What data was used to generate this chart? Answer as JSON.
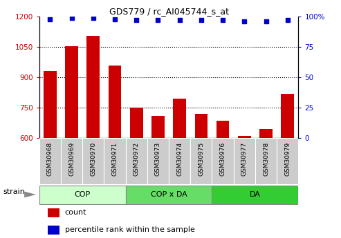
{
  "title": "GDS779 / rc_AI045744_s_at",
  "categories": [
    "GSM30968",
    "GSM30969",
    "GSM30970",
    "GSM30971",
    "GSM30972",
    "GSM30973",
    "GSM30974",
    "GSM30975",
    "GSM30976",
    "GSM30977",
    "GSM30978",
    "GSM30979"
  ],
  "bar_values": [
    930,
    1055,
    1105,
    960,
    752,
    710,
    795,
    720,
    685,
    610,
    645,
    820
  ],
  "percentile_values": [
    98,
    99,
    99,
    98,
    97,
    97,
    97,
    97,
    97,
    96,
    96,
    97
  ],
  "bar_color": "#cc0000",
  "dot_color": "#0000cc",
  "ylim_left": [
    600,
    1200
  ],
  "ylim_right": [
    0,
    100
  ],
  "yticks_left": [
    600,
    750,
    900,
    1050,
    1200
  ],
  "yticks_right": [
    0,
    25,
    50,
    75,
    100
  ],
  "grid_lines": [
    750,
    900,
    1050
  ],
  "groups": [
    {
      "label": "COP",
      "start": 0,
      "end": 4,
      "color": "#ccffcc"
    },
    {
      "label": "COP x DA",
      "start": 4,
      "end": 8,
      "color": "#66dd66"
    },
    {
      "label": "DA",
      "start": 8,
      "end": 12,
      "color": "#33cc33"
    }
  ],
  "strain_label": "strain",
  "legend_count": "count",
  "legend_percentile": "percentile rank within the sample",
  "tick_bg_color": "#cccccc",
  "tick_border_color": "#aaaaaa",
  "group_border_color": "#888888"
}
